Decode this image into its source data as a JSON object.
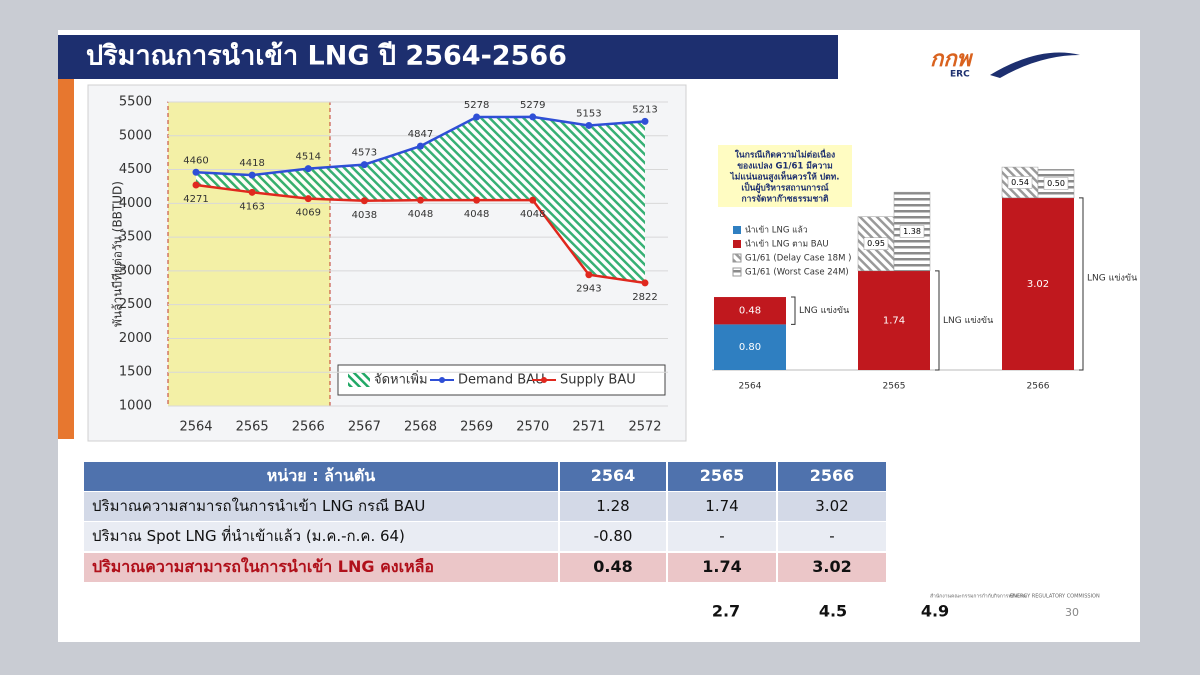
{
  "header": {
    "title": "ปริมาณการนำเข้า LNG ปี 2564-2566",
    "logo": "กกพ",
    "logo_sub": "ERC"
  },
  "chart_data": [
    {
      "type": "line",
      "y_label": "พันล้านบีทียูต่อวัน (BBTUD)",
      "categories": [
        "2564",
        "2565",
        "2566",
        "2567",
        "2568",
        "2569",
        "2570",
        "2571",
        "2572"
      ],
      "series": [
        {
          "name": "Demand BAU",
          "color": "#2f4fd6",
          "values": [
            4460,
            4418,
            4514,
            4573,
            4847,
            5278,
            5279,
            5153,
            5213
          ]
        },
        {
          "name": "Supply BAU",
          "color": "#e0281e",
          "values": [
            4271,
            4163,
            4069,
            4038,
            4048,
            4048,
            4048,
            2943,
            2822
          ]
        }
      ],
      "fill": {
        "name": "จัดหาเพิ่ม",
        "color": "#22a866"
      },
      "ylim": [
        1000,
        5500
      ],
      "yticks": [
        1000,
        1500,
        2000,
        2500,
        3000,
        3500,
        4000,
        4500,
        5000,
        5500
      ],
      "grid": true
    },
    {
      "type": "stacked_bar",
      "annotation": [
        "ในกรณีเกิดความไม่ต่อเนื่อง",
        "ของแปลง G1/61 มีความ",
        "ไม่แน่นอนสูงเห็นควรให้ ปตท.",
        "เป็นผู้บริหารสถานการณ์",
        "การจัดหาก๊าซธรรมชาติ"
      ],
      "categories": [
        "2564",
        "2565",
        "2566"
      ],
      "series": [
        {
          "name": "นำเข้า LNG แล้ว",
          "color": "#2f7fc1",
          "values": [
            0.8,
            null,
            null
          ],
          "value_labels": [
            "0.80",
            null,
            null
          ]
        },
        {
          "name": "นำเข้า LNG ตาม BAU",
          "color": "#c0181e",
          "values": [
            0.48,
            1.74,
            3.02
          ],
          "value_labels": [
            "0.48",
            "1.74",
            "3.02"
          ]
        },
        {
          "name": "G1/61 (Delay Case 18M )",
          "color": "#9a9a9a",
          "values": [
            null,
            0.95,
            0.54
          ],
          "value_labels": [
            null,
            "0.95",
            "0.54"
          ]
        },
        {
          "name": "G1/61 (Worst Case 24M)",
          "color": "#8a8a8a",
          "values": [
            null,
            1.38,
            0.5
          ],
          "value_labels": [
            null,
            "1.38",
            "0.50"
          ]
        }
      ],
      "bracket_labels": [
        "LNG แข่งขัน",
        "LNG แข่งขัน",
        "LNG แข่งขัน"
      ]
    }
  ],
  "table": {
    "header": [
      "หน่วย : ล้านตัน",
      "2564",
      "2565",
      "2566"
    ],
    "rows": [
      [
        "ปริมาณความสามารถในการนำเข้า LNG กรณี BAU",
        "1.28",
        "1.74",
        "3.02"
      ],
      [
        "ปริมาณ Spot LNG ที่นำเข้าแล้ว (ม.ค.-ก.ค. 64)",
        "-0.80",
        "-",
        "-"
      ],
      [
        "ปริมาณความสามารถในการนำเข้า LNG คงเหลือ",
        "0.48",
        "1.74",
        "3.02"
      ]
    ]
  },
  "notes": [
    "2.7",
    "4.5",
    "4.9"
  ],
  "footer": {
    "org_th": "สำนักงานคณะกรรมการกำกับกิจการพลังงาน",
    "org_en": "ENERGY REGULATORY COMMISSION",
    "page": "30"
  }
}
